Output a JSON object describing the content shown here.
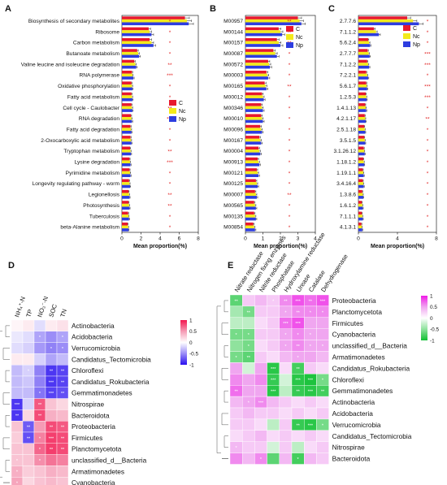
{
  "colors": {
    "C": "#e8182e",
    "Nc": "#f3ea1b",
    "Np": "#2d3de0",
    "heatD": [
      "#2a10f0",
      "#9b8df7",
      "#ffffff",
      "#f59bb5",
      "#f3164e"
    ],
    "heatE": [
      "#10c033",
      "#8fe29d",
      "#ffffff",
      "#f0a6f0",
      "#f01ae6"
    ]
  },
  "chart_data": [
    {
      "panel": "A",
      "type": "bar",
      "orientation": "horizontal",
      "categories": [
        "Biosynthesis of secondary metabolites",
        "Ribosome",
        "Carbon metabolism",
        "Butanoate metabolism",
        "Valine leucine and isoleucine degradation",
        "RNA polymerase",
        "Oxidative phosphorylation",
        "Fatty acid metabolism",
        "Cell cycle - Caulobacter",
        "RNA degradation",
        "Fatty acid degradation",
        "2-Oxocarboxylic acid metabolism",
        "Tryptophan metabolism",
        "Lysine degradation",
        "Pyrimidine metabolism",
        "Longevity regulating pathway - worm",
        "Legionellosis",
        "Photosynthesis",
        "Tuberculosis",
        "beta-Alanine metabolism"
      ],
      "series": [
        {
          "name": "C",
          "values": [
            6.6,
            2.8,
            2.9,
            1.6,
            1.3,
            1.05,
            1.0,
            1.0,
            1.0,
            0.95,
            0.9,
            0.9,
            0.85,
            0.8,
            0.8,
            0.75,
            0.7,
            0.7,
            0.65,
            0.6
          ]
        },
        {
          "name": "Nc",
          "values": [
            6.8,
            2.9,
            3.1,
            1.7,
            1.4,
            1.1,
            1.05,
            1.05,
            1.05,
            1.0,
            0.95,
            0.95,
            0.9,
            0.85,
            0.85,
            0.8,
            0.75,
            0.75,
            0.7,
            0.65
          ]
        },
        {
          "name": "Np",
          "values": [
            7.0,
            3.1,
            3.3,
            1.8,
            1.5,
            1.2,
            1.1,
            1.1,
            1.1,
            1.05,
            1.0,
            1.0,
            0.95,
            0.9,
            0.9,
            0.85,
            0.8,
            0.8,
            0.75,
            0.7
          ]
        }
      ],
      "significance": [
        "*",
        "*",
        "*",
        "*",
        "**",
        "***",
        "*",
        "*",
        "**",
        "***",
        "*",
        "*",
        "**",
        "***",
        "*",
        "*",
        "**",
        "**",
        "*",
        "*"
      ],
      "xlabel": "Mean proportion(%)",
      "xlim": [
        0,
        8
      ],
      "xticks": [
        "0",
        "2",
        "4",
        "6",
        "8"
      ]
    },
    {
      "panel": "B",
      "type": "bar",
      "orientation": "horizontal",
      "categories": [
        "M00957",
        "M00144",
        "M00157",
        "M00087",
        "M00572",
        "M00003",
        "M00165",
        "M00012",
        "M00346",
        "M00010",
        "M00096",
        "M00167",
        "M00004",
        "M00913",
        "M00121",
        "M00125",
        "M00007",
        "M00565",
        "M00135",
        "M00854"
      ],
      "series": [
        {
          "name": "C",
          "values": [
            3.0,
            1.9,
            1.8,
            1.6,
            1.3,
            1.2,
            1.1,
            0.95,
            0.9,
            0.9,
            0.85,
            0.8,
            0.75,
            0.7,
            0.65,
            0.6,
            0.55,
            0.5,
            0.5,
            0.45
          ]
        },
        {
          "name": "Nc",
          "values": [
            3.1,
            2.0,
            1.9,
            1.7,
            1.35,
            1.25,
            1.15,
            1.0,
            0.95,
            0.95,
            0.9,
            0.85,
            0.8,
            0.75,
            0.7,
            0.65,
            0.6,
            0.55,
            0.55,
            0.5
          ]
        },
        {
          "name": "Np",
          "values": [
            3.2,
            2.1,
            2.0,
            1.8,
            1.4,
            1.3,
            1.2,
            1.05,
            1.0,
            1.0,
            0.95,
            0.9,
            0.85,
            0.8,
            0.75,
            0.7,
            0.65,
            0.6,
            0.6,
            0.55
          ]
        }
      ],
      "significance": [
        "**",
        "**",
        "**",
        "*",
        "*",
        "*",
        "**",
        "*",
        "*",
        "*",
        "*",
        "*",
        "*",
        "*",
        "*",
        "*",
        "**",
        "*",
        "*",
        "*"
      ],
      "xlabel": "Mean proportion(%)",
      "xlim": [
        0,
        4
      ],
      "xticks": [
        "0",
        "1",
        "2",
        "3",
        "4"
      ]
    },
    {
      "panel": "C",
      "type": "bar",
      "orientation": "horizontal",
      "categories": [
        "2.7.7.6",
        "7.1.1.2",
        "5.6.2.4",
        "2.7.7.7",
        "7.1.2.2",
        "7.2.2.1",
        "5.6.1.7",
        "1.2.5.3",
        "1.4.1.13",
        "4.2.1.17",
        "2.5.1.18",
        "3.5.1.5",
        "3.1.26.12",
        "1.18.1.2",
        "1.19.1.1",
        "3.4.16.4",
        "1.3.8.6",
        "1.6.1.2",
        "7.1.1.1",
        "4.1.3.1"
      ],
      "series": [
        {
          "name": "C",
          "values": [
            5.0,
            1.6,
            1.0,
            0.95,
            0.9,
            0.8,
            0.8,
            0.75,
            0.7,
            0.65,
            0.6,
            0.6,
            0.55,
            0.5,
            0.45,
            0.45,
            0.4,
            0.35,
            0.35,
            0.3
          ]
        },
        {
          "name": "Nc",
          "values": [
            5.6,
            1.8,
            1.1,
            1.05,
            1.0,
            0.9,
            0.85,
            0.8,
            0.75,
            0.7,
            0.65,
            0.65,
            0.6,
            0.55,
            0.5,
            0.5,
            0.45,
            0.4,
            0.4,
            0.35
          ]
        },
        {
          "name": "Np",
          "values": [
            6.2,
            2.1,
            1.2,
            1.15,
            1.1,
            1.0,
            0.9,
            0.85,
            0.8,
            0.75,
            0.7,
            0.7,
            0.65,
            0.6,
            0.55,
            0.55,
            0.5,
            0.45,
            0.45,
            0.4
          ]
        }
      ],
      "significance": [
        "*",
        "*",
        "*",
        "***",
        "***",
        "*",
        "***",
        "***",
        "*",
        "**",
        "*",
        "*",
        "*",
        "*",
        "*",
        "*",
        "*",
        "*",
        "*",
        "*"
      ],
      "xlabel": "Mean proportion(%)",
      "xlim": [
        0,
        8
      ],
      "xticks": [
        "0",
        "4",
        "8"
      ]
    },
    {
      "panel": "D",
      "type": "heatmap",
      "columns": [
        "NH₄⁺-N",
        "TP",
        "NO₃⁻-N",
        "SOC",
        "TN"
      ],
      "rows": [
        "Actinobacteria",
        "Acidobacteria",
        "Verrucomicrobia",
        "Candidatus_Tectomicrobia",
        "Chloroflexi",
        "Candidatus_Rokubacteria",
        "Gemmatimonadetes",
        "Nitrospirae",
        "Bacteroidota",
        "Proteobacteria",
        "Firmicutes",
        "Planctomycetota",
        "unclassified_d__Bacteria",
        "Armatimonadetes",
        "Cyanobacteria"
      ],
      "values": [
        [
          0.05,
          0.1,
          -0.15,
          0.1,
          0.15
        ],
        [
          -0.1,
          -0.15,
          -0.4,
          -0.5,
          -0.4
        ],
        [
          -0.15,
          -0.2,
          -0.45,
          -0.55,
          -0.5
        ],
        [
          0.1,
          0.1,
          -0.2,
          -0.4,
          -0.3
        ],
        [
          -0.3,
          -0.2,
          -0.55,
          -0.85,
          -0.8
        ],
        [
          -0.3,
          -0.25,
          -0.55,
          -0.85,
          -0.8
        ],
        [
          -0.3,
          -0.3,
          -0.6,
          -0.8,
          -0.75
        ],
        [
          -0.85,
          -0.2,
          0.75,
          0.3,
          0.2
        ],
        [
          -0.85,
          0.2,
          0.8,
          0.4,
          0.35
        ],
        [
          0.3,
          -0.7,
          0.5,
          0.8,
          0.75
        ],
        [
          0.25,
          -0.75,
          0.6,
          0.85,
          0.8
        ],
        [
          0.3,
          0.3,
          0.7,
          0.85,
          0.8
        ],
        [
          0.3,
          0.3,
          0.55,
          0.65,
          0.6
        ],
        [
          0.4,
          0.25,
          0.3,
          0.4,
          0.35
        ],
        [
          0.45,
          0.2,
          0.3,
          0.35,
          0.3
        ]
      ],
      "stars": [
        [
          "",
          "",
          "",
          "",
          ""
        ],
        [
          "",
          "",
          "*",
          "",
          "*"
        ],
        [
          "",
          "",
          "",
          "*",
          "*"
        ],
        [
          "",
          "",
          "",
          "",
          ""
        ],
        [
          "",
          "*",
          "",
          "**",
          "**"
        ],
        [
          "",
          "",
          "",
          "***",
          "**"
        ],
        [
          "",
          "",
          "*",
          "***",
          "**"
        ],
        [
          "***",
          "",
          "**",
          "",
          ""
        ],
        [
          "**",
          "",
          "**",
          "",
          ""
        ],
        [
          "",
          "**",
          "",
          "**",
          "**"
        ],
        [
          "",
          "**",
          "*",
          "***",
          "**"
        ],
        [
          "",
          "",
          "*",
          "**",
          "**"
        ],
        [
          "*",
          "",
          "*",
          "",
          ""
        ],
        [
          "*",
          "",
          "",
          "",
          ""
        ],
        [
          "*",
          "",
          "",
          "",
          ""
        ]
      ],
      "colorbar": [
        "1",
        "0.5",
        "0",
        "-0.5",
        "-1"
      ]
    },
    {
      "panel": "E",
      "type": "heatmap",
      "columns": [
        "Nitrate reductase",
        "Nitrogen fixing enzymes",
        "Nitrite reductase",
        "Phosphatase",
        "Hydroxylamine reductase",
        "Urease",
        "Catalase",
        "Dehydrogenase"
      ],
      "rows": [
        "Proteobacteria",
        "Planctomycetota",
        "Firmicutes",
        "Cyanobacteria",
        "unclassified_d__Bacteria",
        "Armatimonadetes",
        "Candidatus_Rokubacteria",
        "Chloroflexi",
        "Gemmatimonadetes",
        "Actinobacteria",
        "Acidobacteria",
        "Verrucomicrobia",
        "Candidatus_Tectomicrobia",
        "Nitrospirae",
        "Bacteroidota"
      ],
      "values": [
        [
          -0.7,
          0.3,
          0.4,
          0.3,
          0.6,
          0.8,
          0.7,
          0.8
        ],
        [
          -0.4,
          -0.6,
          0.3,
          0.3,
          0.5,
          0.6,
          0.6,
          0.6
        ],
        [
          -0.3,
          -0.3,
          0.2,
          0.3,
          0.7,
          0.8,
          0.5,
          0.5
        ],
        [
          -0.6,
          -0.6,
          0.3,
          0.3,
          0.5,
          0.6,
          0.5,
          0.5
        ],
        [
          -0.5,
          -0.6,
          0.2,
          0.3,
          0.5,
          0.6,
          0.5,
          0.5
        ],
        [
          -0.6,
          -0.7,
          0.3,
          0.2,
          0.4,
          0.5,
          0.5,
          0.4
        ],
        [
          0.5,
          -0.2,
          0.5,
          -0.9,
          0.2,
          -0.8,
          0.3,
          0.2
        ],
        [
          0.6,
          0.5,
          0.6,
          -0.85,
          -0.2,
          -0.9,
          -0.95,
          -0.6
        ],
        [
          0.7,
          0.5,
          0.5,
          -0.9,
          -0.3,
          -0.85,
          -0.9,
          -0.8
        ],
        [
          0.4,
          0.5,
          0.6,
          0.4,
          0.3,
          0.2,
          0.3,
          0.2
        ],
        [
          0.3,
          0.4,
          0.3,
          0.3,
          0.2,
          0.3,
          0.2,
          0.3
        ],
        [
          0.3,
          0.3,
          0.2,
          -0.3,
          0.3,
          -0.85,
          -0.9,
          -0.6
        ],
        [
          0.2,
          0.3,
          0.4,
          0.2,
          0.3,
          0.2,
          0.3,
          0.2
        ],
        [
          0.4,
          0.3,
          0.3,
          -0.2,
          0.3,
          -0.3,
          0.2,
          0.3
        ],
        [
          0.6,
          0.4,
          0.6,
          -0.7,
          0.4,
          -0.8,
          0.4,
          0.3
        ]
      ],
      "stars": [
        [
          "**",
          "",
          "",
          "*",
          "**",
          "***",
          "**",
          "***"
        ],
        [
          "",
          "**",
          "",
          "",
          "*",
          "**",
          "*",
          "*"
        ],
        [
          "",
          "",
          "",
          "",
          "***",
          "***",
          "",
          ""
        ],
        [
          "*",
          "*",
          "",
          "",
          "*",
          "*",
          "*",
          ""
        ],
        [
          "",
          "*",
          "",
          "",
          "*",
          "**",
          "*",
          "*"
        ],
        [
          "*",
          "**",
          "",
          "",
          "",
          "*",
          "",
          ""
        ],
        [
          "",
          "",
          "",
          "***",
          "",
          "**",
          "",
          ""
        ],
        [
          "",
          "",
          "",
          "***",
          "",
          "***",
          "***",
          "*"
        ],
        [
          "**",
          "",
          "",
          "***",
          "",
          "**",
          "***",
          "**"
        ],
        [
          "",
          "*",
          "***",
          "",
          "",
          "",
          "",
          ""
        ],
        [
          "",
          "",
          "",
          "",
          "",
          "",
          "",
          ""
        ],
        [
          "",
          "",
          "",
          "",
          "",
          "**",
          "***",
          "*"
        ],
        [
          "",
          "",
          "",
          "",
          "",
          "",
          "",
          ""
        ],
        [
          "*",
          "",
          "",
          "",
          "",
          "",
          "",
          ""
        ],
        [
          "",
          "",
          "*",
          "",
          "",
          "*",
          "",
          ""
        ]
      ],
      "colorbar": [
        "1",
        "0.5",
        "0",
        "-0.5",
        "-1"
      ]
    }
  ]
}
